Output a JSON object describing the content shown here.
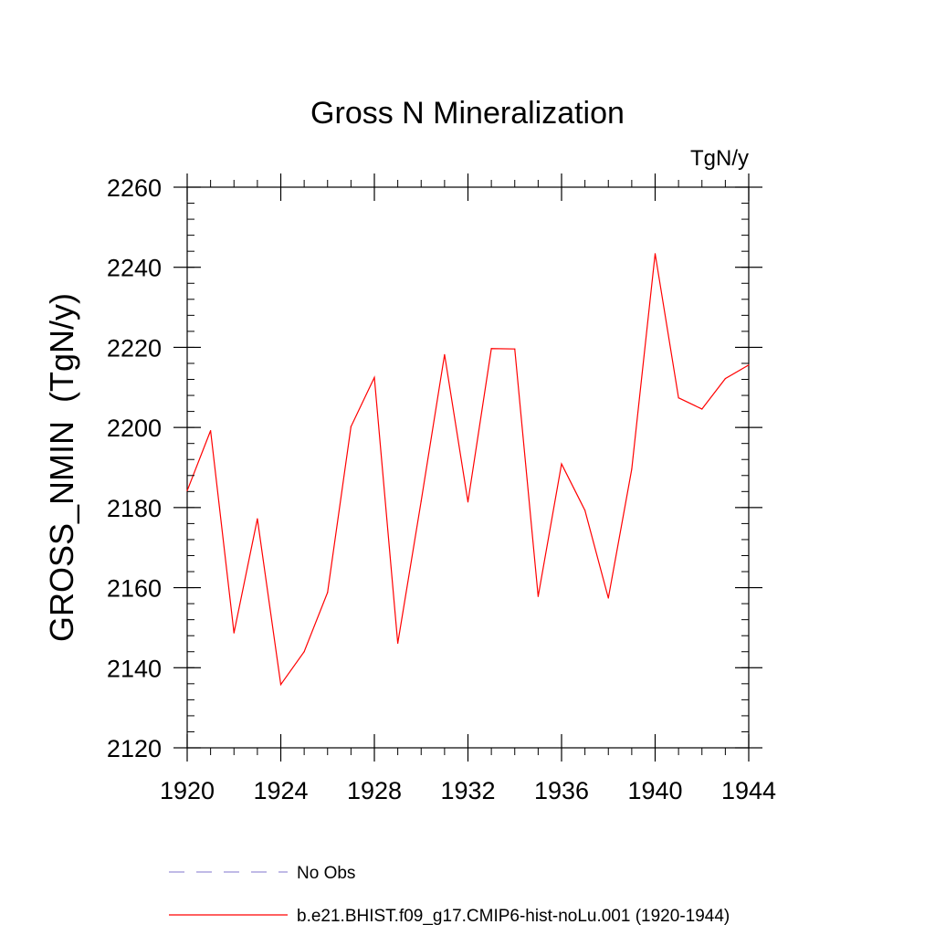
{
  "chart_data": {
    "type": "line",
    "title": "Gross N Mineralization",
    "units_label": "TgN/y",
    "ylabel": "GROSS_NMIN  (TgN/y)",
    "xlabel": "",
    "xlim": [
      1920,
      1944
    ],
    "ylim": [
      2120,
      2260
    ],
    "x_ticks": [
      1920,
      1924,
      1928,
      1932,
      1936,
      1940,
      1944
    ],
    "x_minor_step": 1,
    "y_ticks": [
      2120,
      2140,
      2160,
      2180,
      2200,
      2220,
      2240,
      2260
    ],
    "y_minor_step": 4,
    "grid": false,
    "legend_position": "bottom",
    "series": [
      {
        "name": "b.e21.BHIST.f09_g17.CMIP6-hist-noLu.001 (1920-1944)",
        "color": "#ff0000",
        "dash": "solid",
        "x": [
          1920,
          1921,
          1922,
          1923,
          1924,
          1925,
          1926,
          1927,
          1928,
          1929,
          1930,
          1931,
          1932,
          1933,
          1934,
          1935,
          1936,
          1937,
          1938,
          1939,
          1940,
          1941,
          1942,
          1943,
          1944
        ],
        "y": [
          2184.2,
          2199.2,
          2148.7,
          2177.2,
          2135.8,
          2144.0,
          2158.8,
          2200.2,
          2212.5,
          2146.1,
          2181.6,
          2218.2,
          2181.4,
          2219.7,
          2219.6,
          2157.8,
          2190.9,
          2179.3,
          2157.4,
          2189.6,
          2243.4,
          2207.4,
          2204.6,
          2212.2,
          2215.6
        ]
      }
    ],
    "legend": [
      {
        "label": "No Obs",
        "color": "#9a90d8",
        "dash": "dashed"
      },
      {
        "label": "b.e21.BHIST.f09_g17.CMIP6-hist-noLu.001 (1920-1944)",
        "color": "#ff0000",
        "dash": "solid"
      }
    ]
  }
}
